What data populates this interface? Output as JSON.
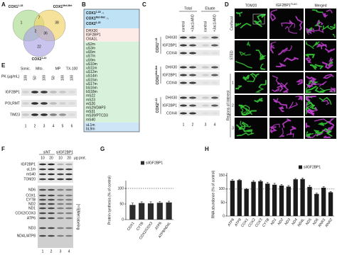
{
  "panels": {
    "a": "A",
    "b": "B",
    "c": "C",
    "d": "D",
    "e": "E",
    "f": "F",
    "g": "G",
    "h": "H"
  },
  "venn": {
    "sets": [
      {
        "name": "COX1",
        "sup": "1-18"
      },
      {
        "name": "COX1",
        "sup": "Met-Met"
      },
      {
        "name": "COX2",
        "sup": "1-22"
      }
    ],
    "counts": [
      1,
      7,
      38,
      2,
      36,
      22
    ]
  },
  "list_box": {
    "header": [
      {
        "name": "COX1",
        "sup": "1-18",
        "op": "∩"
      },
      {
        "name": "COX1",
        "sup": "Met-Met",
        "op": "∩"
      },
      {
        "name": "COX2",
        "sup": "1-22"
      }
    ],
    "groups": [
      [
        "DHX30",
        "IGF2BP1",
        "OXA1L"
      ],
      [
        "uS2m",
        "uS3m",
        "uS5m",
        "uS7m",
        "uS9m",
        "uS10m",
        "uS11m",
        "uS12m",
        "uS14m",
        "uS15m",
        "uS17m",
        "bS16m",
        "bS18m",
        "mS22",
        "mS23",
        "mS26",
        "mS29/DAP3",
        "mS31",
        "mS39/PTCD3",
        "mS40"
      ],
      [
        "uL1m",
        "bL9m"
      ]
    ]
  },
  "pulldown": {
    "total": "Total",
    "eluate": "Eluate",
    "conditions": [
      "control",
      "+Jac1-MIO",
      "control",
      "+Jac1-MIO"
    ],
    "baits": [
      {
        "name": "COX1",
        "sup": "1-18"
      },
      {
        "name": "COX1",
        "sup": "Met-Met"
      },
      {
        "name": "COX2",
        "sup": "1-22"
      }
    ],
    "proteins": [
      "DHX30",
      "IGF2BP1",
      "COX4I"
    ],
    "lanes": [
      1,
      2,
      3,
      4
    ]
  },
  "imaging": {
    "columns": [
      "TOM20",
      {
        "name": "IGF2BP1",
        "sup": "FLAG"
      },
      "Merged"
    ],
    "rows": [
      "Confocal",
      "STED"
    ],
    "roi_label": "Regions of Interest",
    "roi_numbers": [
      1,
      2,
      3
    ]
  },
  "protease": {
    "treatments": [
      "Sonic.",
      "Mito.",
      "MP",
      "TX-100"
    ],
    "pk_label": "PK (µg/mL)",
    "pk_values": [
      100,
      50,
      100,
      50,
      100,
      100
    ],
    "proteins": [
      "IGF2BP1",
      "POLRMT",
      "TIM23"
    ],
    "lanes": [
      1,
      2,
      3,
      4,
      5,
      6
    ]
  },
  "labeling": {
    "conditions": [
      "siNT",
      "siIGF2BP1"
    ],
    "amounts": [
      10,
      20,
      10,
      20
    ],
    "amount_unit": "µg prot.",
    "western": [
      "IGF2BP1",
      "uL1m",
      "mS40",
      "TOM20"
    ],
    "products": [
      "ND6",
      "COX1",
      "CYTB",
      "ND2",
      "ND1",
      "COX2/COX3",
      "ATP6",
      "ND3",
      "ND4L/ATP8"
    ],
    "gel_label": "[³⁵S]Met labeling",
    "lanes": [
      1,
      2,
      3,
      4
    ]
  },
  "chart_data": [
    {
      "type": "bar",
      "y_label": "Protein synthesis (% of control)",
      "categories": [
        "COX1",
        "CYTB",
        "COX2/COX3",
        "ATP6",
        "ATP8/ND4L"
      ],
      "series": [
        {
          "name": "siIGF2BP1",
          "color": "#2b2b2b",
          "values": [
            47,
            53,
            52,
            54,
            55
          ],
          "errors": [
            6,
            4,
            5,
            4,
            4
          ]
        }
      ],
      "ylim": [
        0,
        125
      ],
      "yticks": [
        0,
        50,
        100
      ],
      "reference": 100
    },
    {
      "type": "bar",
      "y_label": "RNA abundance (% of control)",
      "categories": [
        "ATP6",
        "ATP8",
        "COX1",
        "COX2",
        "COX3",
        "CYTB",
        "ND1",
        "ND2",
        "ND3",
        "ND4",
        "ND4L",
        "ND5",
        "ND6",
        "RNR1",
        "RNR2"
      ],
      "series": [
        {
          "name": "siIGF2BP1",
          "color": "#1a1a1a",
          "values": [
            131,
            133,
            100,
            127,
            129,
            120,
            116,
            113,
            109,
            136,
            137,
            108,
            82,
            105,
            88
          ],
          "errors": [
            4,
            3,
            2,
            4,
            3,
            4,
            5,
            4,
            4,
            3,
            4,
            5,
            3,
            4,
            3
          ]
        }
      ],
      "ylim": [
        0,
        160
      ],
      "yticks": [
        0,
        50,
        100,
        150
      ],
      "reference": 100
    }
  ]
}
